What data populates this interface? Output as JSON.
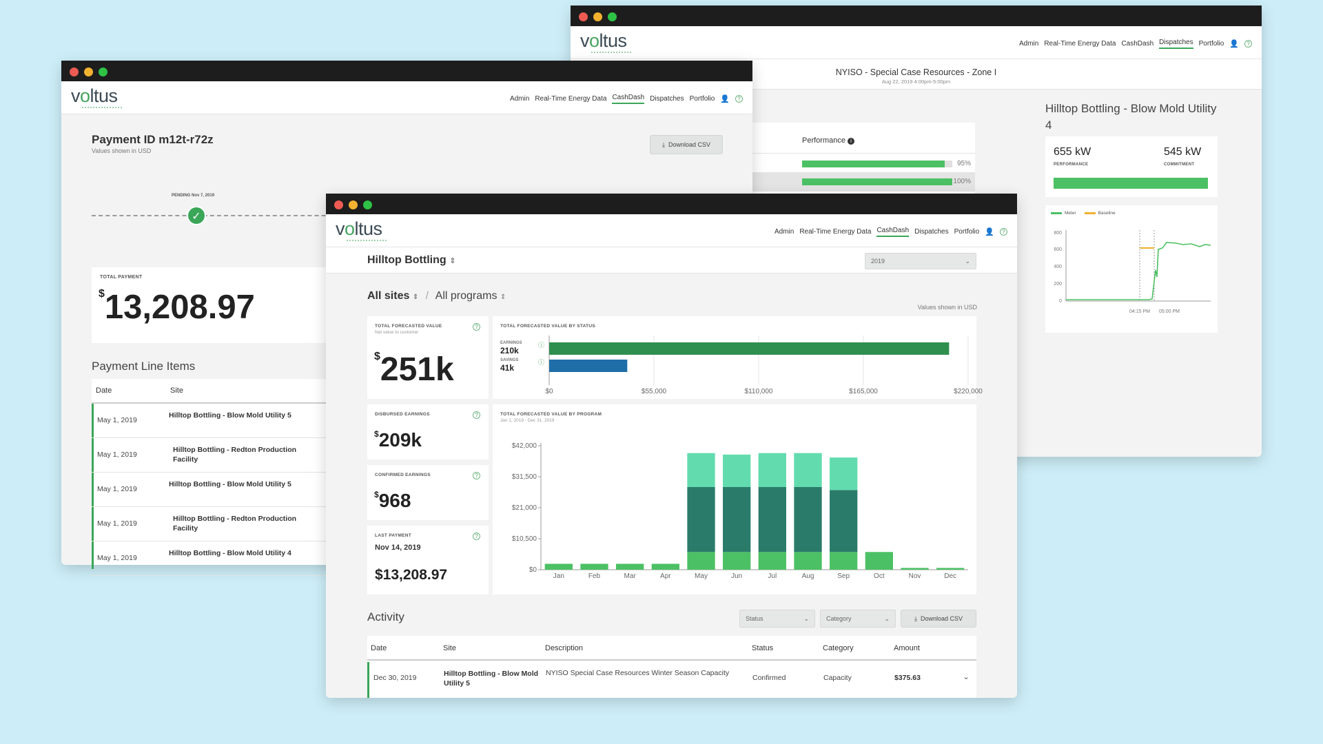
{
  "brand": {
    "logo_pre": "v",
    "logo_o": "o",
    "logo_post": "ltus"
  },
  "nav": {
    "admin": "Admin",
    "realtime": "Real-Time Energy Data",
    "cashdash": "CashDash",
    "dispatches": "Dispatches",
    "portfolio": "Portfolio",
    "user_icon": "👤",
    "help_icon": "?"
  },
  "dispatch": {
    "title": "NYISO - Special Case Resources - Zone I",
    "subtitle": "Aug 22, 2019 4:00pm-5:00pm",
    "performance_label": "Performance",
    "perf_rows": [
      {
        "value": 0.95,
        "label": "95%"
      },
      {
        "value": 1.0,
        "label": "100%"
      }
    ],
    "site_title": "Hilltop Bottling - Blow Mold Utility 4",
    "performance_kw": "655 kW",
    "performance_caption": "PERFORMANCE",
    "commitment_kw": "545 kW",
    "commitment_caption": "COMMITMENT",
    "legend_meter": "Meter",
    "legend_baseline": "Baseline",
    "yticks": [
      "800",
      "600",
      "400",
      "200",
      "0"
    ],
    "xticks": [
      "04:15 PM",
      "05:00 PM"
    ]
  },
  "payment": {
    "title": "Payment ID m12t-r72z",
    "subtitle": "Values shown in USD",
    "download": "Download CSV",
    "pending": "PENDING Nov 7, 2019",
    "total_label": "TOTAL PAYMENT",
    "currency": "$",
    "total_value": "13,208.97",
    "line_items_title": "Payment Line Items",
    "col_date": "Date",
    "col_site": "Site",
    "rows": [
      {
        "date": "May 1, 2019",
        "site": "Hilltop Bottling - Blow Mold Utility 5"
      },
      {
        "date": "May 1, 2019",
        "site": "Hilltop Bottling - Redton Production Facility"
      },
      {
        "date": "May 1, 2019",
        "site": "Hilltop Bottling - Blow Mold Utility 5"
      },
      {
        "date": "May 1, 2019",
        "site": "Hilltop Bottling - Redton Production Facility"
      },
      {
        "date": "May 1, 2019",
        "site": "Hilltop Bottling - Blow Mold Utility 4"
      }
    ]
  },
  "cashdash": {
    "customer": "Hilltop Bottling",
    "year": "2019",
    "sites_filter": "All sites",
    "programs_filter": "All programs",
    "values_note": "Values shown in USD",
    "tfv_label": "TOTAL FORECASTED VALUE",
    "tfv_sub": "Net value to customer",
    "tfv_value": "251k",
    "disbursed_label": "DISBURSED EARNINGS",
    "disbursed_value": "209k",
    "confirmed_label": "CONFIRMED EARNINGS",
    "confirmed_value": "968",
    "last_payment_label": "LAST PAYMENT",
    "last_payment_date": "Nov 14, 2019",
    "last_payment_value": "$13,208.97",
    "currency": "$",
    "status_chart_title": "TOTAL FORECASTED VALUE BY STATUS",
    "program_chart_title": "TOTAL FORECASTED VALUE BY PROGRAM",
    "program_chart_sub": "Jan 1, 2019 - Dec 31, 2019",
    "activity_title": "Activity",
    "status_select": "Status",
    "category_select": "Category",
    "download": "Download CSV",
    "table_headers": [
      "Date",
      "Site",
      "Description",
      "Status",
      "Category",
      "Amount"
    ],
    "table_row": {
      "date": "Dec 30, 2019",
      "site": "Hilltop Bottling - Blow Mold Utility 5",
      "description": "NYISO Special Case Resources Winter Season Capacity",
      "status": "Confirmed",
      "category": "Capacity",
      "amount": "$375.63"
    }
  },
  "chart_data": [
    {
      "type": "bar",
      "title": "TOTAL FORECASTED VALUE BY STATUS",
      "orientation": "horizontal",
      "categories": [
        "EARNINGS",
        "SAVINGS"
      ],
      "value_labels": [
        "210k",
        "41k"
      ],
      "values": [
        210000,
        41000
      ],
      "xticks": [
        "$0",
        "$55,000",
        "$110,000",
        "$165,000",
        "$220,000"
      ],
      "xlim": [
        0,
        220000
      ],
      "colors": [
        "#2f8f4f",
        "#1f6ea8"
      ]
    },
    {
      "type": "bar",
      "stacked": true,
      "title": "TOTAL FORECASTED VALUE BY PROGRAM",
      "categories": [
        "Jan",
        "Feb",
        "Mar",
        "Apr",
        "May",
        "Jun",
        "Jul",
        "Aug",
        "Sep",
        "Oct",
        "Nov",
        "Dec"
      ],
      "yticks": [
        "$42,000",
        "$31,500",
        "$21,000",
        "$10,500",
        "$0"
      ],
      "ylim": [
        0,
        42000
      ],
      "series": [
        {
          "color": "#4cc064",
          "values": [
            2000,
            2000,
            2000,
            2000,
            6000,
            6000,
            6000,
            6000,
            6000,
            6000,
            600,
            600
          ]
        },
        {
          "color": "#2b7b6b",
          "values": [
            0,
            0,
            0,
            0,
            22000,
            22000,
            22000,
            22000,
            21000,
            0,
            0,
            0
          ]
        },
        {
          "color": "#62dcae",
          "values": [
            0,
            0,
            0,
            0,
            11500,
            11000,
            11500,
            11500,
            11000,
            0,
            0,
            0
          ]
        }
      ]
    }
  ]
}
